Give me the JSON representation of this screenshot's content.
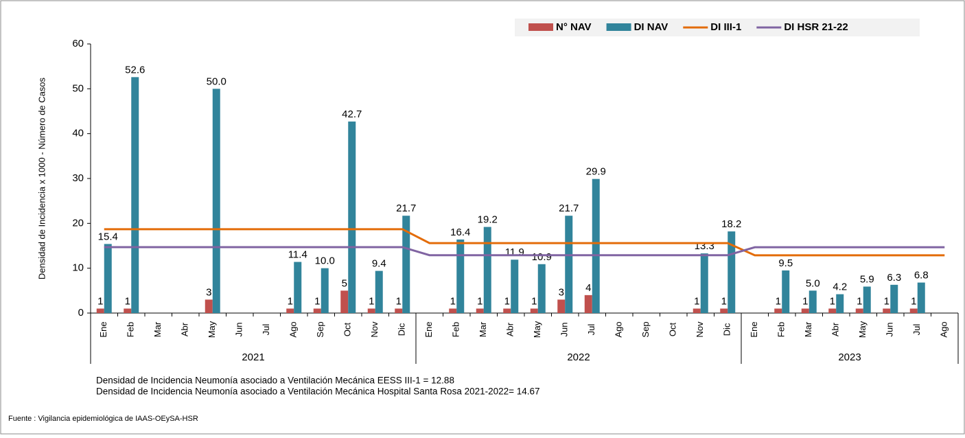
{
  "chart_data": {
    "type": "bar_line",
    "y_label": "Densidad de Incidencia x 1000 - Número de Casos",
    "categories": [
      "Ene",
      "Feb",
      "Mar",
      "Abr",
      "May",
      "Jun",
      "Jul",
      "Ago",
      "Sep",
      "Oct",
      "Nov",
      "Dic",
      "Ene",
      "Feb",
      "Mar",
      "Abr",
      "May",
      "Jun",
      "Jul",
      "Ago",
      "Sep",
      "Oct",
      "Nov",
      "Dic",
      "Ene",
      "Feb",
      "Mar",
      "Abr",
      "May",
      "Jun",
      "Jul",
      "Ago"
    ],
    "groups": [
      {
        "label": "2021",
        "count": 12
      },
      {
        "label": "2022",
        "count": 12
      },
      {
        "label": "2023",
        "count": 8
      }
    ],
    "series": [
      {
        "name": "N° NAV",
        "kind": "bar",
        "color": "#c0504d",
        "values": [
          1,
          1,
          null,
          null,
          3,
          null,
          null,
          1,
          1,
          5,
          1,
          1,
          null,
          1,
          1,
          1,
          1,
          3,
          4,
          null,
          null,
          null,
          1,
          1,
          null,
          1,
          1,
          1,
          1,
          1,
          1,
          null
        ]
      },
      {
        "name": "DI NAV",
        "kind": "bar",
        "color": "#31849b",
        "values": [
          15.4,
          52.6,
          null,
          null,
          50,
          null,
          null,
          11.4,
          10,
          42.7,
          9.4,
          21.7,
          null,
          16.4,
          19.2,
          11.9,
          10.9,
          21.7,
          29.9,
          null,
          null,
          null,
          13.3,
          18.2,
          null,
          9.5,
          5,
          4.2,
          5.9,
          6.3,
          6.8,
          null
        ],
        "value_labels": [
          "15.4",
          "52.6",
          null,
          null,
          "50.0",
          null,
          null,
          "11.4",
          "10.0",
          "42.7",
          "9.4",
          "21.7",
          null,
          "16.4",
          "19.2",
          "11.9",
          "10.9",
          "21.7",
          "29.9",
          null,
          null,
          null,
          "13.3",
          "18.2",
          null,
          "9.5",
          "5.0",
          "4.2",
          "5.9",
          "6.3",
          "6.8",
          null
        ]
      },
      {
        "name": "DI III-1",
        "kind": "line",
        "color": "#e36c09",
        "values": [
          18.7,
          18.7,
          18.7,
          18.7,
          18.7,
          18.7,
          18.7,
          18.7,
          18.7,
          18.7,
          18.7,
          18.7,
          15.6,
          15.6,
          15.6,
          15.6,
          15.6,
          15.6,
          15.6,
          15.6,
          15.6,
          15.6,
          15.6,
          15.6,
          12.88,
          12.88,
          12.88,
          12.88,
          12.88,
          12.88,
          12.88,
          12.88
        ]
      },
      {
        "name": "DI HSR 21-22",
        "kind": "line",
        "color": "#8064a2",
        "values": [
          14.7,
          14.7,
          14.7,
          14.7,
          14.7,
          14.7,
          14.7,
          14.7,
          14.7,
          14.7,
          14.7,
          14.7,
          12.9,
          12.9,
          12.9,
          12.9,
          12.9,
          12.9,
          12.9,
          12.9,
          12.9,
          12.9,
          12.9,
          12.9,
          14.67,
          14.67,
          14.67,
          14.67,
          14.67,
          14.67,
          14.67,
          14.67
        ]
      }
    ],
    "ylim": [
      0,
      60
    ],
    "yticks": [
      0,
      10,
      20,
      30,
      40,
      50,
      60
    ],
    "notes": [
      "Densidad de Incidencia Neumonía asociado a Ventilación Mecánica EESS III-1 = 12.88",
      "Densidad de Incidencia Neumonía asociado a Ventilación Mecánica Hospital Santa Rosa 2021-2022=  14.67"
    ],
    "source": "Fuente : Vigilancia epidemiológica de IAAS-OEySA-HSR"
  }
}
